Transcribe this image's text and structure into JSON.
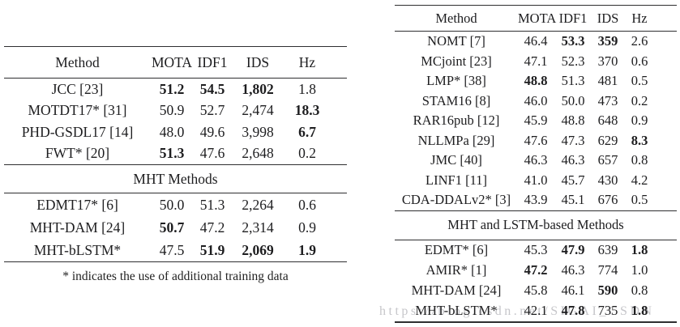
{
  "watermark": {
    "text": "https://blog.csdn.net/SIGAI_CSDN",
    "color": "#c6c6ca"
  },
  "colors": {
    "text": "#1d1d1f",
    "rule": "#2e2e30",
    "background": "#ffffff"
  },
  "left_table": {
    "headers": {
      "method": "Method",
      "mota": "MOTA",
      "idf1": "IDF1",
      "ids": "IDS",
      "hz": "Hz"
    },
    "rows": [
      {
        "method": "JCC [23]",
        "mota": "51.2",
        "idf1": "54.5",
        "ids": "1,802",
        "hz": "1.8"
      },
      {
        "method": "MOTDT17* [31]",
        "mota": "50.9",
        "idf1": "52.7",
        "ids": "2,474",
        "hz": "18.3"
      },
      {
        "method": "PHD-GSDL17 [14]",
        "mota": "48.0",
        "idf1": "49.6",
        "ids": "3,998",
        "hz": "6.7"
      },
      {
        "method": "FWT* [20]",
        "mota": "51.3",
        "idf1": "47.6",
        "ids": "2,648",
        "hz": "0.2"
      }
    ],
    "section_label": "MHT Methods",
    "section_rows": [
      {
        "method": "EDMT17* [6]",
        "mota": "50.0",
        "idf1": "51.3",
        "ids": "2,264",
        "hz": "0.6"
      },
      {
        "method": "MHT-DAM [24]",
        "mota": "50.7",
        "idf1": "47.2",
        "ids": "2,314",
        "hz": "0.9"
      },
      {
        "method": "MHT-bLSTM*",
        "mota": "47.5",
        "idf1": "51.9",
        "ids": "2,069",
        "hz": "1.9"
      }
    ],
    "footnote": "* indicates the use of additional training data"
  },
  "right_table": {
    "headers": {
      "method": "Method",
      "mota": "MOTA",
      "idf1": "IDF1",
      "ids": "IDS",
      "hz": "Hz"
    },
    "rows": [
      {
        "method": "NOMT [7]",
        "mota": "46.4",
        "idf1": "53.3",
        "ids": "359",
        "hz": "2.6"
      },
      {
        "method": "MCjoint [23]",
        "mota": "47.1",
        "idf1": "52.3",
        "ids": "370",
        "hz": "0.6"
      },
      {
        "method": "LMP* [38]",
        "mota": "48.8",
        "idf1": "51.3",
        "ids": "481",
        "hz": "0.5"
      },
      {
        "method": "STAM16 [8]",
        "mota": "46.0",
        "idf1": "50.0",
        "ids": "473",
        "hz": "0.2"
      },
      {
        "method": "RAR16pub [12]",
        "mota": "45.9",
        "idf1": "48.8",
        "ids": "648",
        "hz": "0.9"
      },
      {
        "method": "NLLMPa [29]",
        "mota": "47.6",
        "idf1": "47.3",
        "ids": "629",
        "hz": "8.3"
      },
      {
        "method": "JMC [40]",
        "mota": "46.3",
        "idf1": "46.3",
        "ids": "657",
        "hz": "0.8"
      },
      {
        "method": "LINF1 [11]",
        "mota": "41.0",
        "idf1": "45.7",
        "ids": "430",
        "hz": "4.2"
      },
      {
        "method": "CDA-DDALv2* [3]",
        "mota": "43.9",
        "idf1": "45.1",
        "ids": "676",
        "hz": "0.5"
      }
    ],
    "section_label": "MHT and LSTM-based Methods",
    "section_rows": [
      {
        "method": "EDMT* [6]",
        "mota": "45.3",
        "idf1": "47.9",
        "ids": "639",
        "hz": "1.8"
      },
      {
        "method": "AMIR* [1]",
        "mota": "47.2",
        "idf1": "46.3",
        "ids": "774",
        "hz": "1.0"
      },
      {
        "method": "MHT-DAM [24]",
        "mota": "45.8",
        "idf1": "46.1",
        "ids": "590",
        "hz": "0.8"
      },
      {
        "method": "MHT-bLSTM*",
        "mota": "42.1",
        "idf1": "47.8",
        "ids": "735",
        "hz": "1.8"
      }
    ]
  }
}
